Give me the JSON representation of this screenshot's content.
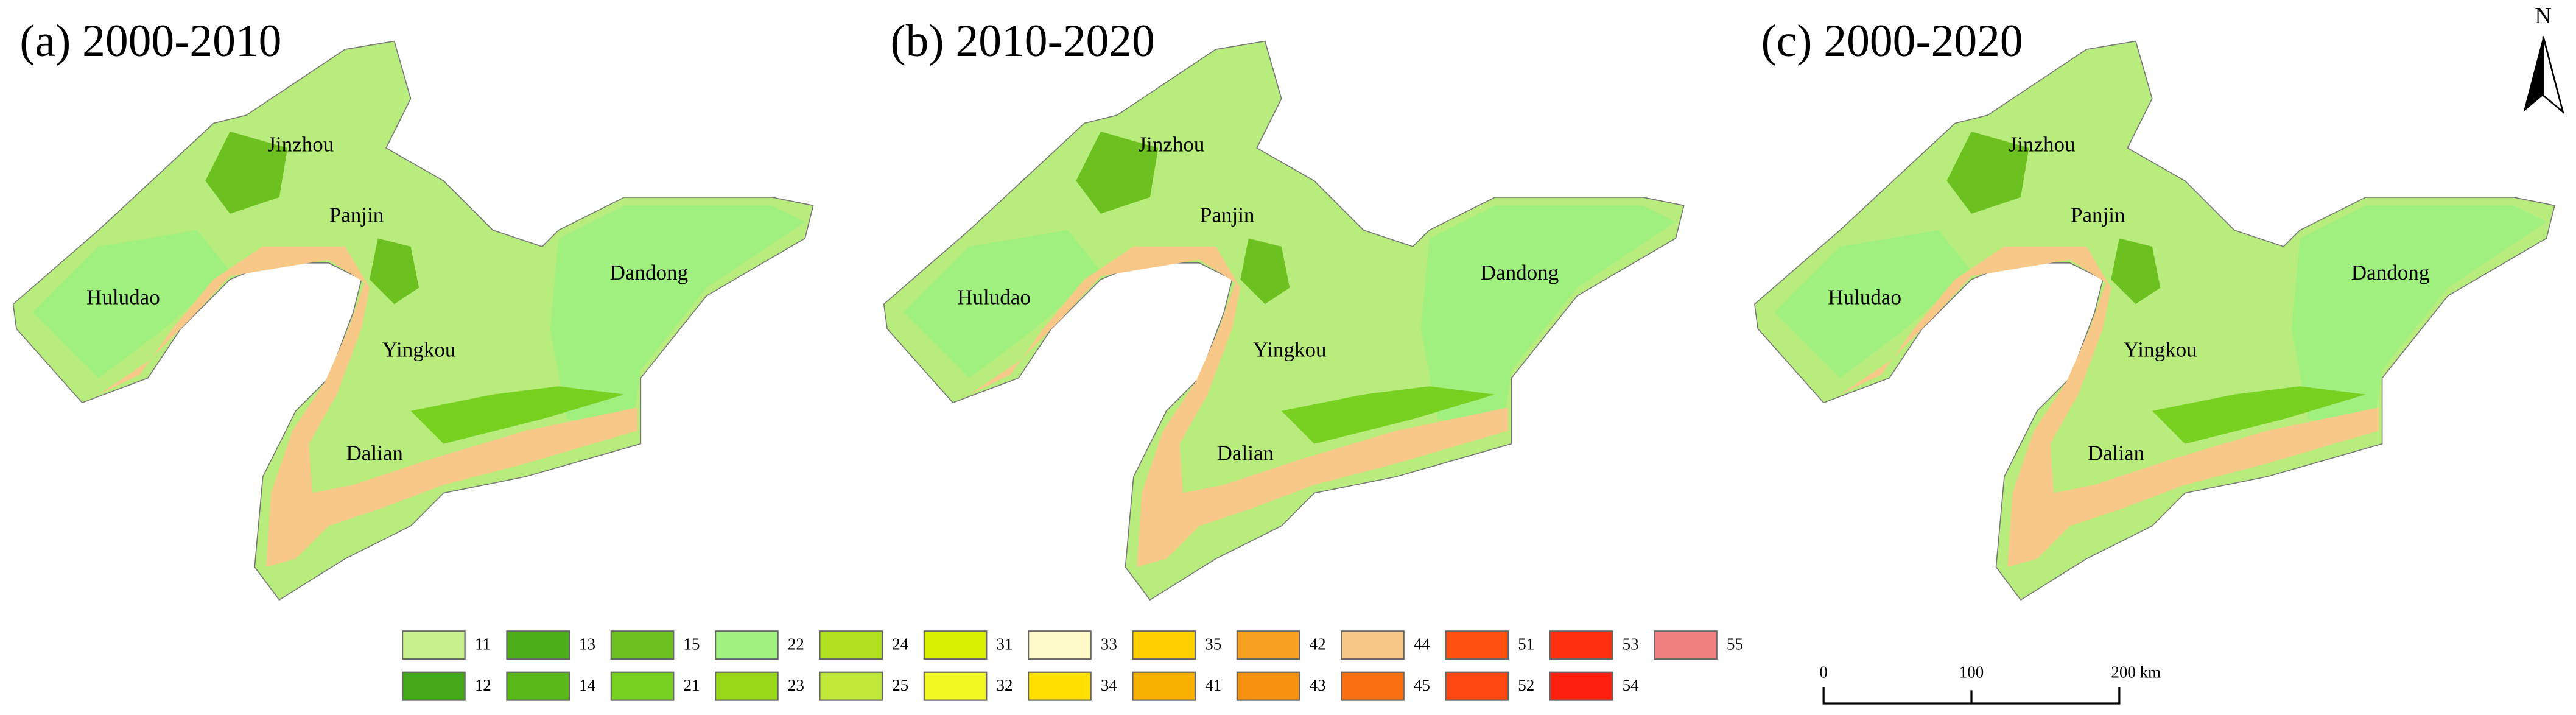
{
  "panels": [
    {
      "title": "(a) 2000-2010",
      "cities": [
        "Jinzhou",
        "Panjin",
        "Huludao",
        "Dandong",
        "Yingkou",
        "Dalian"
      ]
    },
    {
      "title": "(b) 2010-2020",
      "cities": [
        "Jinzhou",
        "Panjin",
        "Huludao",
        "Dandong",
        "Yingkou",
        "Dalian"
      ]
    },
    {
      "title": "(c) 2000-2020",
      "cities": [
        "Jinzhou",
        "Panjin",
        "Huludao",
        "Dandong",
        "Yingkou",
        "Dalian"
      ]
    }
  ],
  "legend": {
    "rows": [
      [
        {
          "label": "11",
          "color": "#c8f08c"
        },
        {
          "label": "13",
          "color": "#4caf1a"
        },
        {
          "label": "15",
          "color": "#6cc020"
        },
        {
          "label": "22",
          "color": "#a0f080"
        },
        {
          "label": "24",
          "color": "#b0e020"
        },
        {
          "label": "31",
          "color": "#d8f000"
        },
        {
          "label": "33",
          "color": "#fff8c8"
        },
        {
          "label": "35",
          "color": "#ffd000"
        },
        {
          "label": "42",
          "color": "#f8a020"
        },
        {
          "label": "44",
          "color": "#f8c888"
        },
        {
          "label": "51",
          "color": "#ff5010"
        },
        {
          "label": "53",
          "color": "#ff3010"
        },
        {
          "label": "55",
          "color": "#f08080"
        }
      ],
      [
        {
          "label": "12",
          "color": "#44a818"
        },
        {
          "label": "14",
          "color": "#58b818"
        },
        {
          "label": "21",
          "color": "#78d020"
        },
        {
          "label": "23",
          "color": "#98d818"
        },
        {
          "label": "25",
          "color": "#c0e838"
        },
        {
          "label": "32",
          "color": "#f0f820"
        },
        {
          "label": "34",
          "color": "#ffe000"
        },
        {
          "label": "41",
          "color": "#f8b000"
        },
        {
          "label": "43",
          "color": "#f89010"
        },
        {
          "label": "45",
          "color": "#f87010"
        },
        {
          "label": "52",
          "color": "#ff4810"
        },
        {
          "label": "54",
          "color": "#ff2010"
        }
      ]
    ]
  },
  "scale_bar": {
    "labels": [
      "0",
      "100",
      "200 km"
    ]
  },
  "north_arrow": {
    "label": "N"
  }
}
